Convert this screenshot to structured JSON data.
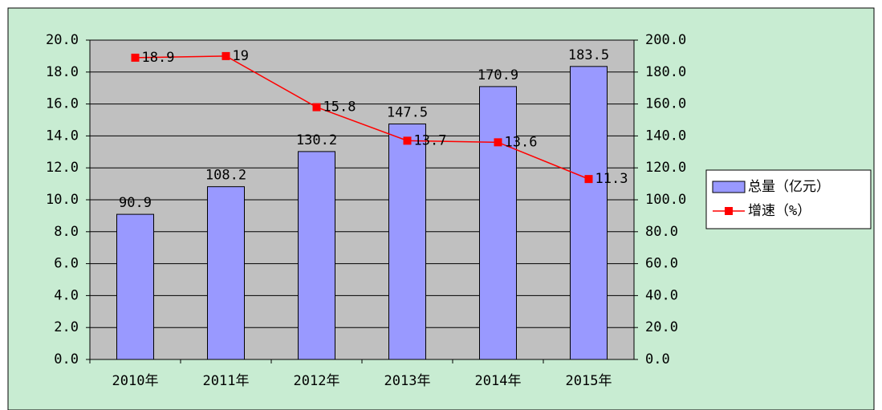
{
  "chart_data": {
    "type": "bar",
    "categories": [
      "2010年",
      "2011年",
      "2012年",
      "2013年",
      "2014年",
      "2015年"
    ],
    "series": [
      {
        "name": "总量（亿元）",
        "type": "bar",
        "axis": "y2",
        "color": "#9999ff",
        "values": [
          90.9,
          108.2,
          130.2,
          147.5,
          170.9,
          183.5
        ]
      },
      {
        "name": "增速（%）",
        "type": "line",
        "color": "#ff0000",
        "values": [
          18.9,
          19,
          15.8,
          13.7,
          13.6,
          11.3
        ]
      }
    ],
    "ylim": [
      0,
      20
    ],
    "yticks": [
      {
        "value": 0,
        "label": "0.0"
      },
      {
        "value": 2,
        "label": "2.0"
      },
      {
        "value": 4,
        "label": "4.0"
      },
      {
        "value": 6,
        "label": "6.0"
      },
      {
        "value": 8,
        "label": "8.0"
      },
      {
        "value": 10,
        "label": "10.0"
      },
      {
        "value": 12,
        "label": "12.0"
      },
      {
        "value": 14,
        "label": "14.0"
      },
      {
        "value": 16,
        "label": "16.0"
      },
      {
        "value": 18,
        "label": "18.0"
      },
      {
        "value": 20,
        "label": "20.0"
      }
    ],
    "y2lim": [
      0,
      200
    ],
    "y2ticks": [
      {
        "value": 0,
        "label": "0.0"
      },
      {
        "value": 20,
        "label": "20.0"
      },
      {
        "value": 40,
        "label": "40.0"
      },
      {
        "value": 60,
        "label": "60.0"
      },
      {
        "value": 80,
        "label": "80.0"
      },
      {
        "value": 100,
        "label": "100.0"
      },
      {
        "value": 120,
        "label": "120.0"
      },
      {
        "value": 140,
        "label": "140.0"
      },
      {
        "value": 160,
        "label": "160.0"
      },
      {
        "value": 180,
        "label": "180.0"
      },
      {
        "value": 200,
        "label": "200.0"
      }
    ],
    "grid": true,
    "legend": "right"
  }
}
